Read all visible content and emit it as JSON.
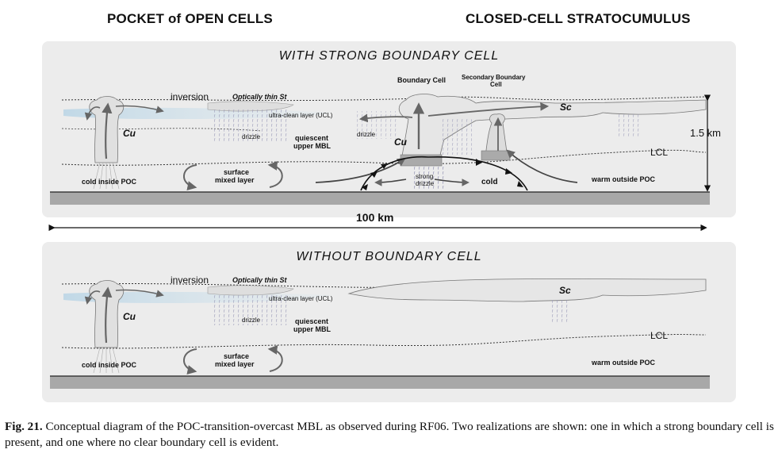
{
  "headings": {
    "left": "POCKET of OPEN CELLS",
    "right": "CLOSED-CELL STRATOCUMULUS"
  },
  "panel_a": {
    "title": "WITH STRONG BOUNDARY CELL",
    "inversion": "inversion",
    "thin_st": "Optically thin St",
    "boundary_cell": "Boundary Cell",
    "secondary_line1": "Secondary Boundary",
    "secondary_line2": "Cell",
    "sc": "Sc",
    "ucl": "ultra-clean layer (UCL)",
    "cu_left": "Cu",
    "cu_center": "Cu",
    "drizzle_left": "drizzle",
    "drizzle_center": "drizzle",
    "quiescent_line1": "quiescent",
    "quiescent_line2": "upper MBL",
    "lcl": "LCL",
    "surface_line1": "surface",
    "surface_line2": "mixed layer",
    "cold_inside": "cold inside POC",
    "strong_line1": "strong",
    "strong_line2": "drizzle",
    "cold": "cold",
    "warm_outside": "warm outside POC",
    "height_scale": "1.5 km"
  },
  "scale_bar": "100 km",
  "panel_b": {
    "title": "WITHOUT BOUNDARY CELL",
    "inversion": "inversion",
    "thin_st": "Optically thin St",
    "sc": "Sc",
    "ucl": "ultra-clean layer (UCL)",
    "cu": "Cu",
    "drizzle": "drizzle",
    "quiescent_line1": "quiescent",
    "quiescent_line2": "upper MBL",
    "lcl": "LCL",
    "surface_line1": "surface",
    "surface_line2": "mixed layer",
    "cold_inside": "cold inside POC",
    "warm_outside": "warm outside POC"
  },
  "caption": {
    "label": "Fig. 21.",
    "text": "Conceptual diagram of the POC-transition-overcast MBL as observed during RF06. Two realizations are shown: one in which a strong boundary cell is present, and one where no clear boundary cell is evident."
  }
}
